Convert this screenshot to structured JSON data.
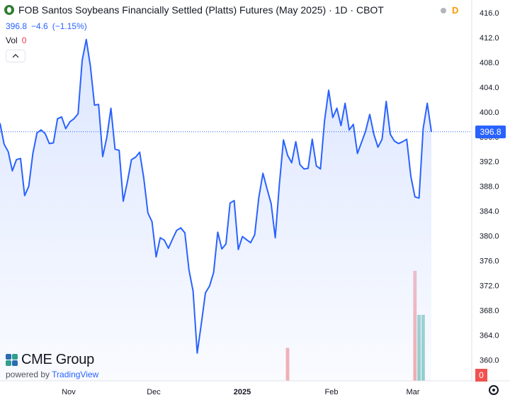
{
  "header": {
    "title": "FOB Santos Soybeans Financially Settled (Platts) Futures (May 2025) · 1D · CBOT",
    "market_status": "D",
    "last_price": "396.8",
    "change": "−4.6",
    "change_pct": "(−1.15%)",
    "volume_label": "Vol",
    "volume_value": "0",
    "collapse_icon": "chevron-up-icon"
  },
  "branding": {
    "logo": "CME Group",
    "powered_prefix": "powered by",
    "powered_brand": "TradingView"
  },
  "colors": {
    "line": "#2962ff",
    "area": "#dbe5ff",
    "vol_up": "#84c9c3",
    "vol_down": "#f4a3a6",
    "last_tag": "#2962ff"
  },
  "axis": {
    "last_tag": "396.8",
    "vol_tag": "0"
  },
  "chart_data": {
    "type": "line",
    "title": "FOB Santos Soybeans Financially Settled (Platts) Futures (May 2025) · 1D · CBOT",
    "ylim": [
      356.5,
      416
    ],
    "y_ticks": [
      "416.0",
      "412.0",
      "408.0",
      "404.0",
      "400.0",
      "396.0",
      "392.0",
      "388.0",
      "384.0",
      "380.0",
      "376.0",
      "372.0",
      "368.0",
      "364.0",
      "360.0"
    ],
    "x_ticks": [
      "Nov",
      "Dec",
      "2025",
      "Feb",
      "Mar"
    ],
    "last_value": 396.8,
    "grid": false,
    "series": [
      {
        "values": [
          398.2,
          394.8,
          393.6,
          390.5,
          392.3,
          392.5,
          386.5,
          388.0,
          393.3,
          396.6,
          397.1,
          396.5,
          394.9,
          395.0,
          398.9,
          399.2,
          397.3,
          398.4,
          398.9,
          399.7,
          408.3,
          411.7,
          407.4,
          401.1,
          401.2,
          392.8,
          395.9,
          400.6,
          394.0,
          393.8,
          385.6,
          388.7,
          392.3,
          392.7,
          393.5,
          389.3,
          383.7,
          382.3,
          376.6,
          379.7,
          379.3,
          378.0,
          379.5,
          380.9,
          381.3,
          380.5,
          374.5,
          371.1,
          361.1,
          365.8,
          370.8,
          371.9,
          374.1,
          380.6,
          377.9,
          378.7,
          385.3,
          385.7,
          377.8,
          379.9,
          379.4,
          378.9,
          380.2,
          386.2,
          390.1,
          387.6,
          385.2,
          379.7,
          388.3,
          395.5,
          393.0,
          391.8,
          395.2,
          391.5,
          390.8,
          390.9,
          395.6,
          391.3,
          390.8,
          398.6,
          403.5,
          399.1,
          400.6,
          397.8,
          401.4,
          397.1,
          398.0,
          393.3,
          395.1,
          396.9,
          399.6,
          396.4,
          394.3,
          395.6,
          401.7,
          396.4,
          395.3,
          394.9,
          395.2,
          395.6,
          389.6,
          386.3,
          386.1,
          397.3,
          401.4,
          396.8
        ]
      }
    ],
    "volume": {
      "ylim": [
        0,
        12
      ],
      "bars": [
        [
          70,
          4.2,
          "down"
        ],
        [
          101,
          14,
          "down"
        ],
        [
          102,
          8.4,
          "up"
        ],
        [
          103,
          8.4,
          "up"
        ]
      ]
    }
  }
}
